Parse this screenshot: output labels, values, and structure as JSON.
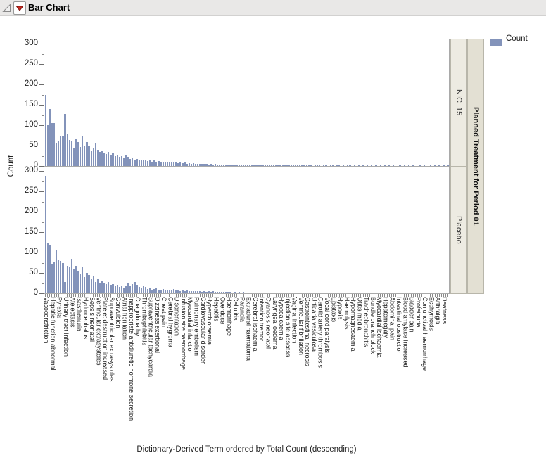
{
  "window": {
    "title": "Bar Chart"
  },
  "legend": {
    "label": "Count"
  },
  "colors": {
    "bar": "#8393ba",
    "strip_inner_bg": "#edebe2",
    "strip_outer_bg": "#e3e0d3",
    "titlebar_bg": "#e9e8e7",
    "red_triangle": "#cf2a1f",
    "axis_line": "#a9a9a9"
  },
  "axes": {
    "y_label": "Count",
    "y_ticks": [
      0,
      50,
      100,
      150,
      200,
      250,
      300
    ],
    "y_minor_step": 25,
    "x_caption": "Dictionary-Derived Term ordered by Total Count (descending)"
  },
  "panel_strip": {
    "title": "Planned Treatment for Period 01",
    "groups": [
      "NIC .15",
      "Placebo"
    ]
  },
  "chart_data": {
    "type": "bar",
    "title": "Bar Chart",
    "xlabel": "Dictionary-Derived Term ordered by Total Count (descending)",
    "ylabel": "Count",
    "ylim": [
      0,
      300
    ],
    "y_tick_step": 50,
    "legend": [
      "Count"
    ],
    "facet_by": "Planned Treatment for Period 01",
    "label_every_nth_bar": 3,
    "tick_labels": [
      "Vasoconstriction",
      "Hepatic function abnormal",
      "Pyrexia",
      "Urinary tract infection",
      "Atelectasis",
      "Isosthenuria",
      "Hydrocephalus",
      "Sepsis neonatal",
      "Ventricular extrasystoles",
      "Platelet destruction increased",
      "Supraventricular extrasystoles",
      "Convulsion",
      "Atrial fibrillation",
      "Inappropriate antidiuretic hormone secretion",
      "Coagulopathy",
      "Thrombophlebitis",
      "Supraventricular tachycardia",
      "Dizziness exertional",
      "Chest pain",
      "Cerebral hygroma",
      "Disorientation",
      "Infusion site haemorrhage",
      "Myocardial infarction",
      "Pulmonary embolism",
      "Cardiovascular disorder",
      "Hyperchloraemia",
      "Hepatitis",
      "Overdose",
      "Haemorrhage",
      "Cellulitis",
      "Paranoia",
      "Extradural haematoma",
      "Cerebral ischaemia",
      "Intention tremor",
      "Cyanosis neonatal",
      "Laryngeal oedema",
      "Hypocalcaemia",
      "Injection site abscess",
      "Vaginal infection",
      "Ventricular fibrillation",
      "Gastrointestinal necrosis",
      "Urticaria vesiculosa",
      "Carotid artery thrombosis",
      "Vocal cord paralysis",
      "Epistaxis",
      "Hypoxia",
      "Haemolysis",
      "Hypomagnesaemia",
      "Otitis media",
      "Tracheobronchitis",
      "Bundle branch block",
      "Myocardial ischaemia",
      "Hepatomegaly",
      "Abdominal pain",
      "Intestinal obstruction",
      "Blood amylase increased",
      "Bladder pain",
      "Proteinuria",
      "Conjunctival haemorrhage",
      "Ecchymosis",
      "Arthralgia",
      "Deafness"
    ],
    "series": [
      {
        "name": "NIC .15",
        "values": [
          175,
          100,
          140,
          106,
          105,
          56,
          62,
          75,
          74,
          128,
          78,
          63,
          61,
          45,
          68,
          58,
          46,
          72,
          48,
          58,
          50,
          38,
          43,
          55,
          40,
          35,
          38,
          33,
          30,
          35,
          28,
          31,
          25,
          28,
          22,
          25,
          20,
          26,
          22,
          18,
          20,
          16,
          18,
          14,
          16,
          13,
          15,
          12,
          14,
          11,
          13,
          10,
          12,
          10,
          11,
          9,
          10,
          8,
          10,
          8,
          9,
          7,
          8,
          7,
          8,
          6,
          7,
          6,
          7,
          5,
          6,
          5,
          6,
          5,
          5,
          4,
          5,
          4,
          5,
          4,
          4,
          3,
          4,
          3,
          4,
          3,
          3,
          3,
          3,
          2,
          3,
          2,
          3,
          2,
          2,
          2,
          2,
          2,
          2,
          2,
          2,
          1,
          2,
          1,
          2,
          1,
          2,
          1,
          1,
          1,
          1,
          1,
          1,
          1,
          1,
          1,
          1,
          1,
          1,
          1,
          1,
          1,
          1,
          0,
          1,
          1,
          1,
          0,
          1,
          1,
          0,
          1,
          1,
          0,
          1,
          1,
          0,
          1,
          0,
          1,
          1,
          0,
          1,
          0,
          1,
          0,
          1,
          0,
          1,
          0,
          1,
          0,
          1,
          0,
          1,
          0,
          1,
          0,
          1,
          0,
          1,
          0,
          0,
          1,
          0,
          1,
          0,
          1,
          0,
          1,
          0,
          0,
          1,
          0,
          1,
          0,
          0,
          1,
          0,
          1,
          0,
          1,
          0,
          1,
          0,
          1
        ]
      },
      {
        "name": "Placebo",
        "values": [
          288,
          122,
          117,
          70,
          78,
          106,
          83,
          80,
          74,
          27,
          67,
          63,
          85,
          61,
          68,
          56,
          47,
          63,
          39,
          50,
          44,
          35,
          42,
          28,
          34,
          26,
          31,
          25,
          22,
          27,
          20,
          23,
          18,
          21,
          16,
          19,
          14,
          17,
          25,
          18,
          22,
          28,
          20,
          15,
          12,
          18,
          15,
          10,
          12,
          9,
          11,
          13,
          9,
          8,
          10,
          8,
          9,
          7,
          8,
          10,
          7,
          8,
          6,
          7,
          6,
          8,
          5,
          6,
          5,
          6,
          5,
          6,
          4,
          5,
          4,
          5,
          4,
          5,
          3,
          4,
          3,
          4,
          3,
          4,
          3,
          3,
          2,
          3,
          2,
          3,
          2,
          3,
          2,
          2,
          2,
          2,
          2,
          2,
          1,
          2,
          1,
          2,
          1,
          2,
          1,
          1,
          2,
          1,
          1,
          1,
          1,
          1,
          1,
          1,
          1,
          1,
          1,
          1,
          1,
          1,
          1,
          1,
          0,
          1,
          1,
          0,
          1,
          1,
          0,
          1,
          0,
          1,
          1,
          0,
          1,
          0,
          1,
          1,
          0,
          1,
          0,
          1,
          0,
          1,
          0,
          1,
          0,
          1,
          0,
          1,
          0,
          1,
          0,
          1,
          0,
          1,
          0,
          1,
          0,
          1,
          0,
          0,
          1,
          0,
          1,
          0,
          1,
          0,
          1,
          0,
          0,
          1,
          0,
          1,
          0,
          0,
          1,
          0,
          1,
          0,
          1,
          0,
          1,
          0,
          1,
          0
        ]
      }
    ]
  }
}
